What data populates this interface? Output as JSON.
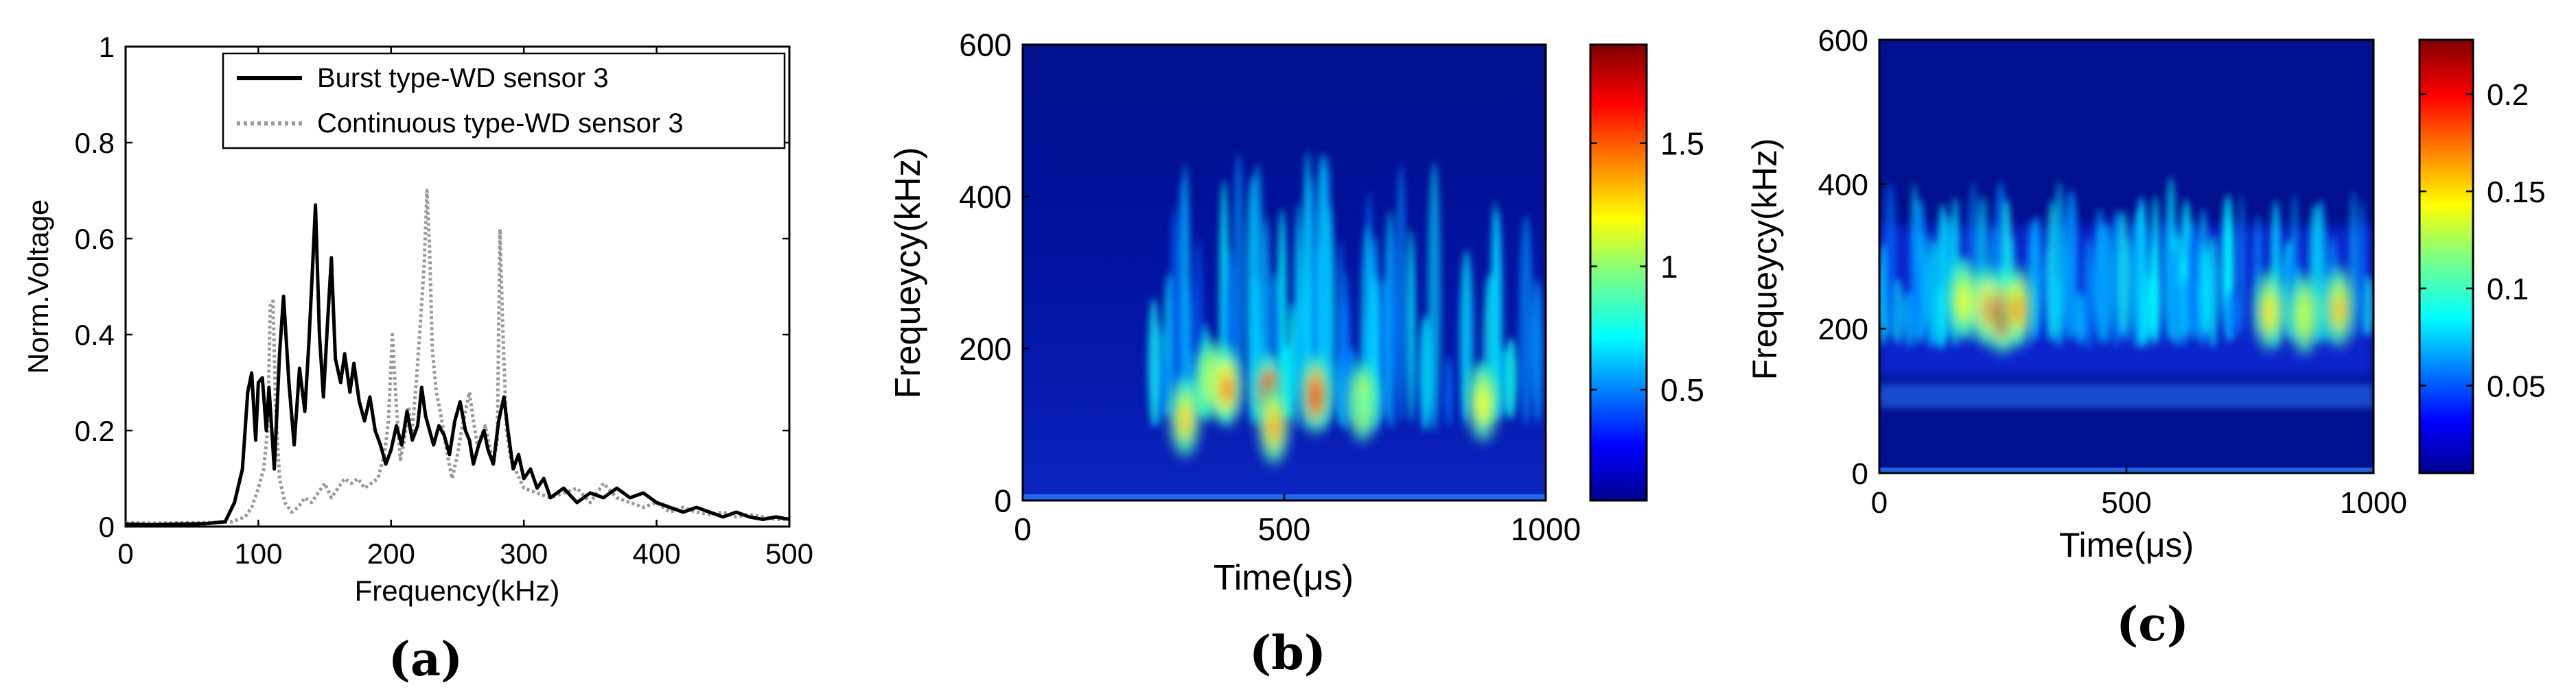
{
  "panels": [
    {
      "id": "a",
      "caption": "(a)"
    },
    {
      "id": "b",
      "caption": "(b)"
    },
    {
      "id": "c",
      "caption": "(c)"
    }
  ],
  "chart_data": [
    {
      "type": "line",
      "panel": "a",
      "title": "",
      "xlabel": "Frequency(kHz)",
      "ylabel": "Norm.Voltage",
      "xlim": [
        0,
        500
      ],
      "ylim": [
        0,
        1
      ],
      "xticks": [
        0,
        100,
        200,
        300,
        400,
        500
      ],
      "yticks": [
        0,
        0.2,
        0.4,
        0.6,
        0.8,
        1
      ],
      "ytick_labels": [
        "0",
        "0.2",
        "0.4",
        "0.6",
        "0.8",
        "1"
      ],
      "grid": false,
      "legend_position": "top-right",
      "series": [
        {
          "name": "Burst type-WD sensor 3",
          "color": "#000000",
          "style": "solid",
          "points": [
            [
              0,
              0.005
            ],
            [
              20,
              0.004
            ],
            [
              40,
              0.005
            ],
            [
              60,
              0.006
            ],
            [
              75,
              0.01
            ],
            [
              82,
              0.05
            ],
            [
              88,
              0.12
            ],
            [
              92,
              0.28
            ],
            [
              95,
              0.32
            ],
            [
              98,
              0.18
            ],
            [
              100,
              0.3
            ],
            [
              103,
              0.31
            ],
            [
              106,
              0.2
            ],
            [
              108,
              0.29
            ],
            [
              112,
              0.12
            ],
            [
              116,
              0.36
            ],
            [
              119,
              0.48
            ],
            [
              123,
              0.3
            ],
            [
              127,
              0.17
            ],
            [
              131,
              0.33
            ],
            [
              135,
              0.24
            ],
            [
              138,
              0.38
            ],
            [
              141,
              0.55
            ],
            [
              143,
              0.67
            ],
            [
              146,
              0.4
            ],
            [
              149,
              0.27
            ],
            [
              152,
              0.42
            ],
            [
              155,
              0.56
            ],
            [
              158,
              0.35
            ],
            [
              162,
              0.3
            ],
            [
              165,
              0.36
            ],
            [
              169,
              0.28
            ],
            [
              172,
              0.34
            ],
            [
              176,
              0.26
            ],
            [
              180,
              0.22
            ],
            [
              184,
              0.27
            ],
            [
              188,
              0.2
            ],
            [
              192,
              0.17
            ],
            [
              196,
              0.13
            ],
            [
              200,
              0.16
            ],
            [
              204,
              0.21
            ],
            [
              208,
              0.17
            ],
            [
              212,
              0.24
            ],
            [
              216,
              0.18
            ],
            [
              220,
              0.21
            ],
            [
              223,
              0.29
            ],
            [
              226,
              0.23
            ],
            [
              229,
              0.2
            ],
            [
              232,
              0.17
            ],
            [
              236,
              0.21
            ],
            [
              240,
              0.19
            ],
            [
              244,
              0.15
            ],
            [
              248,
              0.22
            ],
            [
              252,
              0.26
            ],
            [
              256,
              0.2
            ],
            [
              259,
              0.18
            ],
            [
              262,
              0.13
            ],
            [
              266,
              0.17
            ],
            [
              270,
              0.2
            ],
            [
              273,
              0.16
            ],
            [
              277,
              0.13
            ],
            [
              281,
              0.22
            ],
            [
              285,
              0.27
            ],
            [
              288,
              0.2
            ],
            [
              292,
              0.12
            ],
            [
              296,
              0.15
            ],
            [
              300,
              0.1
            ],
            [
              305,
              0.12
            ],
            [
              310,
              0.08
            ],
            [
              315,
              0.1
            ],
            [
              320,
              0.06
            ],
            [
              330,
              0.08
            ],
            [
              340,
              0.05
            ],
            [
              350,
              0.07
            ],
            [
              360,
              0.06
            ],
            [
              370,
              0.08
            ],
            [
              380,
              0.06
            ],
            [
              390,
              0.07
            ],
            [
              400,
              0.05
            ],
            [
              410,
              0.04
            ],
            [
              420,
              0.03
            ],
            [
              430,
              0.04
            ],
            [
              440,
              0.03
            ],
            [
              450,
              0.02
            ],
            [
              460,
              0.03
            ],
            [
              470,
              0.02
            ],
            [
              480,
              0.015
            ],
            [
              490,
              0.02
            ],
            [
              500,
              0.015
            ]
          ]
        },
        {
          "name": "Continuous type-WD sensor 3",
          "color": "#999999",
          "style": "dotted",
          "points": [
            [
              0,
              0.008
            ],
            [
              20,
              0.007
            ],
            [
              40,
              0.008
            ],
            [
              60,
              0.008
            ],
            [
              80,
              0.01
            ],
            [
              90,
              0.02
            ],
            [
              95,
              0.04
            ],
            [
              100,
              0.08
            ],
            [
              104,
              0.12
            ],
            [
              107,
              0.2
            ],
            [
              109,
              0.46
            ],
            [
              111,
              0.47
            ],
            [
              113,
              0.25
            ],
            [
              116,
              0.1
            ],
            [
              120,
              0.05
            ],
            [
              125,
              0.03
            ],
            [
              130,
              0.04
            ],
            [
              135,
              0.06
            ],
            [
              140,
              0.05
            ],
            [
              145,
              0.07
            ],
            [
              150,
              0.09
            ],
            [
              155,
              0.06
            ],
            [
              160,
              0.08
            ],
            [
              165,
              0.1
            ],
            [
              170,
              0.09
            ],
            [
              175,
              0.1
            ],
            [
              180,
              0.08
            ],
            [
              185,
              0.09
            ],
            [
              190,
              0.1
            ],
            [
              195,
              0.15
            ],
            [
              198,
              0.22
            ],
            [
              201,
              0.4
            ],
            [
              204,
              0.25
            ],
            [
              207,
              0.14
            ],
            [
              210,
              0.18
            ],
            [
              213,
              0.25
            ],
            [
              216,
              0.2
            ],
            [
              219,
              0.3
            ],
            [
              222,
              0.42
            ],
            [
              225,
              0.55
            ],
            [
              227,
              0.7
            ],
            [
              229,
              0.58
            ],
            [
              231,
              0.37
            ],
            [
              234,
              0.28
            ],
            [
              237,
              0.24
            ],
            [
              240,
              0.19
            ],
            [
              243,
              0.14
            ],
            [
              246,
              0.1
            ],
            [
              250,
              0.15
            ],
            [
              253,
              0.2
            ],
            [
              256,
              0.24
            ],
            [
              259,
              0.28
            ],
            [
              262,
              0.22
            ],
            [
              265,
              0.17
            ],
            [
              268,
              0.19
            ],
            [
              271,
              0.21
            ],
            [
              274,
              0.17
            ],
            [
              277,
              0.13
            ],
            [
              280,
              0.18
            ],
            [
              282,
              0.62
            ],
            [
              284,
              0.42
            ],
            [
              287,
              0.2
            ],
            [
              290,
              0.14
            ],
            [
              295,
              0.11
            ],
            [
              300,
              0.08
            ],
            [
              310,
              0.07
            ],
            [
              320,
              0.06
            ],
            [
              330,
              0.07
            ],
            [
              340,
              0.08
            ],
            [
              350,
              0.05
            ],
            [
              360,
              0.09
            ],
            [
              370,
              0.06
            ],
            [
              380,
              0.05
            ],
            [
              390,
              0.04
            ],
            [
              400,
              0.05
            ],
            [
              410,
              0.03
            ],
            [
              420,
              0.04
            ],
            [
              430,
              0.03
            ],
            [
              440,
              0.025
            ],
            [
              450,
              0.03
            ],
            [
              460,
              0.02
            ],
            [
              470,
              0.025
            ],
            [
              480,
              0.02
            ],
            [
              490,
              0.015
            ],
            [
              500,
              0.015
            ]
          ]
        }
      ]
    },
    {
      "type": "heatmap",
      "panel": "b",
      "title": "",
      "xlabel": "Time(μs)",
      "ylabel": "Frequeycy(kHz)",
      "xlim": [
        0,
        1000
      ],
      "ylim": [
        0,
        600
      ],
      "xticks": [
        0,
        500,
        1000
      ],
      "yticks": [
        0,
        200,
        400,
        600
      ],
      "colorbar": {
        "range": [
          0.05,
          1.9
        ],
        "ticks": [
          0.5,
          1,
          1.5
        ],
        "colormap": "jet"
      },
      "hotspots": [
        {
          "t": 310,
          "f": 110,
          "v": 1.3
        },
        {
          "t": 360,
          "f": 160,
          "v": 1.1
        },
        {
          "t": 390,
          "f": 150,
          "v": 1.5
        },
        {
          "t": 470,
          "f": 140,
          "v": 1.9
        },
        {
          "t": 480,
          "f": 100,
          "v": 1.4
        },
        {
          "t": 560,
          "f": 140,
          "v": 1.7
        },
        {
          "t": 650,
          "f": 130,
          "v": 0.9
        },
        {
          "t": 880,
          "f": 130,
          "v": 1.2
        }
      ]
    },
    {
      "type": "heatmap",
      "panel": "c",
      "title": "",
      "xlabel": "Time(μs)",
      "ylabel": "Frequeycy(kHz)",
      "xlim": [
        0,
        1000
      ],
      "ylim": [
        0,
        600
      ],
      "xticks": [
        0,
        500,
        1000
      ],
      "yticks": [
        0,
        200,
        400,
        600
      ],
      "colorbar": {
        "range": [
          0.005,
          0.228
        ],
        "ticks": [
          0.05,
          0.1,
          0.15,
          0.2
        ],
        "colormap": "jet"
      },
      "hotspots": [
        {
          "t": 170,
          "f": 240,
          "v": 0.14
        },
        {
          "t": 220,
          "f": 230,
          "v": 0.18
        },
        {
          "t": 250,
          "f": 220,
          "v": 0.22
        },
        {
          "t": 280,
          "f": 230,
          "v": 0.17
        },
        {
          "t": 790,
          "f": 225,
          "v": 0.15
        },
        {
          "t": 860,
          "f": 220,
          "v": 0.13
        },
        {
          "t": 930,
          "f": 230,
          "v": 0.16
        }
      ]
    }
  ]
}
